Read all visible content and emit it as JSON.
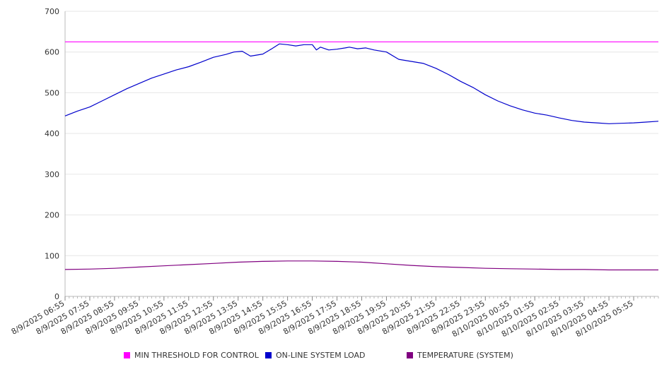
{
  "chart_data": {
    "type": "line",
    "title": "",
    "xlabel": "",
    "ylabel": "",
    "ylim": [
      0,
      700
    ],
    "y_ticks": [
      0,
      100,
      200,
      300,
      400,
      500,
      600,
      700
    ],
    "grid": "horizontal",
    "legend_position": "bottom",
    "x_tick_labels": [
      "8/9/2025 06:55",
      "8/9/2025 07:55",
      "8/9/2025 08:55",
      "8/9/2025 09:55",
      "8/9/2025 10:55",
      "8/9/2025 11:55",
      "8/9/2025 12:55",
      "8/9/2025 13:55",
      "8/9/2025 14:55",
      "8/9/2025 15:55",
      "8/9/2025 16:55",
      "8/9/2025 17:55",
      "8/9/2025 18:55",
      "8/9/2025 19:55",
      "8/9/2025 20:55",
      "8/9/2025 21:55",
      "8/9/2025 22:55",
      "8/9/2025 23:55",
      "8/10/2025 00:55",
      "8/10/2025 01:55",
      "8/10/2025 02:55",
      "8/10/2025 03:55",
      "8/10/2025 04:55",
      "8/10/2025 05:55"
    ],
    "x_range": [
      "8/9/2025 06:55",
      "8/10/2025 06:55"
    ],
    "series": [
      {
        "name": "MIN THRESHOLD FOR CONTROL",
        "color": "#ff00ff",
        "x": [
          "8/9/2025 06:55",
          "8/10/2025 06:55"
        ],
        "values": [
          625,
          625
        ]
      },
      {
        "name": "ON-LINE SYSTEM LOAD",
        "color": "#0000cc",
        "x": [
          "8/9/2025 06:55",
          "8/9/2025 07:25",
          "8/9/2025 07:55",
          "8/9/2025 08:25",
          "8/9/2025 08:55",
          "8/9/2025 09:25",
          "8/9/2025 09:55",
          "8/9/2025 10:25",
          "8/9/2025 10:55",
          "8/9/2025 11:25",
          "8/9/2025 11:55",
          "8/9/2025 12:25",
          "8/9/2025 12:55",
          "8/9/2025 13:25",
          "8/9/2025 13:45",
          "8/9/2025 14:05",
          "8/9/2025 14:25",
          "8/9/2025 14:55",
          "8/9/2025 15:15",
          "8/9/2025 15:35",
          "8/9/2025 15:55",
          "8/9/2025 16:15",
          "8/9/2025 16:35",
          "8/9/2025 16:55",
          "8/9/2025 17:05",
          "8/9/2025 17:15",
          "8/9/2025 17:35",
          "8/9/2025 17:55",
          "8/9/2025 18:15",
          "8/9/2025 18:25",
          "8/9/2025 18:45",
          "8/9/2025 19:05",
          "8/9/2025 19:25",
          "8/9/2025 19:55",
          "8/9/2025 20:25",
          "8/9/2025 20:55",
          "8/9/2025 21:25",
          "8/9/2025 21:55",
          "8/9/2025 22:25",
          "8/9/2025 22:55",
          "8/9/2025 23:25",
          "8/9/2025 23:55",
          "8/10/2025 00:25",
          "8/10/2025 00:55",
          "8/10/2025 01:25",
          "8/10/2025 01:55",
          "8/10/2025 02:25",
          "8/10/2025 02:55",
          "8/10/2025 03:25",
          "8/10/2025 03:55",
          "8/10/2025 04:25",
          "8/10/2025 04:55",
          "8/10/2025 05:25",
          "8/10/2025 05:55",
          "8/10/2025 06:25",
          "8/10/2025 06:55"
        ],
        "values": [
          443,
          455,
          465,
          480,
          495,
          510,
          523,
          536,
          546,
          556,
          564,
          575,
          587,
          594,
          600,
          602,
          590,
          595,
          607,
          620,
          618,
          615,
          618,
          618,
          605,
          612,
          605,
          607,
          610,
          612,
          608,
          610,
          605,
          600,
          582,
          577,
          572,
          560,
          545,
          528,
          513,
          495,
          480,
          468,
          458,
          450,
          445,
          438,
          432,
          428,
          426,
          424,
          425,
          426,
          428,
          430
        ]
      },
      {
        "name": "TEMPERATURE (SYSTEM)",
        "color": "#800080",
        "x": [
          "8/9/2025 06:55",
          "8/9/2025 07:55",
          "8/9/2025 08:55",
          "8/9/2025 09:55",
          "8/9/2025 10:55",
          "8/9/2025 11:55",
          "8/9/2025 12:55",
          "8/9/2025 13:55",
          "8/9/2025 14:55",
          "8/9/2025 15:55",
          "8/9/2025 16:55",
          "8/9/2025 17:55",
          "8/9/2025 18:55",
          "8/9/2025 19:55",
          "8/9/2025 20:55",
          "8/9/2025 21:55",
          "8/9/2025 22:55",
          "8/9/2025 23:55",
          "8/10/2025 00:55",
          "8/10/2025 01:55",
          "8/10/2025 02:55",
          "8/10/2025 03:55",
          "8/10/2025 04:55",
          "8/10/2025 05:55",
          "8/10/2025 06:55"
        ],
        "values": [
          66,
          67,
          69,
          72,
          75,
          78,
          81,
          84,
          86,
          87,
          87,
          86,
          84,
          80,
          76,
          73,
          71,
          69,
          68,
          67,
          66,
          66,
          65,
          65,
          65
        ]
      }
    ]
  }
}
